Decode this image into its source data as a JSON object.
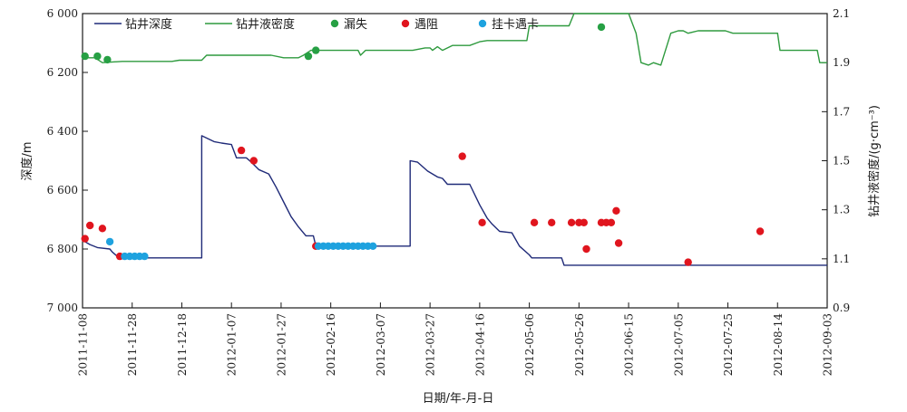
{
  "chart_data": {
    "type": "line",
    "title": "",
    "xlabel": "日期/年-月-日",
    "ylabel_left": "深度/m",
    "ylabel_right": "钻井液密度/(g·cm⁻³)",
    "xlim": [
      "2011-11-08",
      "2012-09-03"
    ],
    "ylim_left": [
      6000,
      7000
    ],
    "ylim_left_inverted": true,
    "ylim_right": [
      0.9,
      2.1
    ],
    "grid": false,
    "legend_placement": "top",
    "x_ticks": [
      "2011-11-08",
      "2011-11-28",
      "2011-12-18",
      "2012-01-07",
      "2012-01-27",
      "2012-02-16",
      "2012-03-07",
      "2012-03-27",
      "2012-04-16",
      "2012-05-06",
      "2012-05-26",
      "2012-06-15",
      "2012-07-05",
      "2012-07-25",
      "2012-08-14",
      "2012-09-03"
    ],
    "y_left_ticks": [
      "6 000",
      "6 200",
      "6 400",
      "6 600",
      "6 800",
      "7 000"
    ],
    "y_right_ticks": [
      "0.9",
      "1.1",
      "1.3",
      "1.5",
      "1.7",
      "1.9",
      "2.1"
    ],
    "colors": {
      "depth": "#1f2a78",
      "density": "#2e9a3e",
      "loss": "#27a044",
      "resistance": "#e0151e",
      "stuck": "#1ea2df",
      "axis": "#1a1a1a"
    },
    "series": [
      {
        "name": "钻井深度",
        "kind": "line",
        "axis": "left",
        "points": [
          [
            "2011-11-08",
            6770
          ],
          [
            "2011-11-11",
            6785
          ],
          [
            "2011-11-14",
            6795
          ],
          [
            "2011-11-19",
            6800
          ],
          [
            "2011-11-20",
            6810
          ],
          [
            "2011-11-22",
            6825
          ],
          [
            "2011-11-28",
            6830
          ],
          [
            "2011-12-26",
            6830
          ],
          [
            "2011-12-26",
            6415
          ],
          [
            "2011-12-31",
            6435
          ],
          [
            "2012-01-03",
            6440
          ],
          [
            "2012-01-07",
            6445
          ],
          [
            "2012-01-09",
            6490
          ],
          [
            "2012-01-13",
            6490
          ],
          [
            "2012-01-15",
            6505
          ],
          [
            "2012-01-18",
            6530
          ],
          [
            "2012-01-22",
            6545
          ],
          [
            "2012-01-25",
            6590
          ],
          [
            "2012-01-28",
            6640
          ],
          [
            "2012-01-31",
            6690
          ],
          [
            "2012-02-03",
            6725
          ],
          [
            "2012-02-06",
            6755
          ],
          [
            "2012-02-09",
            6755
          ],
          [
            "2012-02-10",
            6790
          ],
          [
            "2012-03-19",
            6790
          ],
          [
            "2012-03-19",
            6500
          ],
          [
            "2012-03-22",
            6505
          ],
          [
            "2012-03-26",
            6535
          ],
          [
            "2012-03-30",
            6555
          ],
          [
            "2012-04-01",
            6560
          ],
          [
            "2012-04-03",
            6580
          ],
          [
            "2012-04-12",
            6580
          ],
          [
            "2012-04-16",
            6650
          ],
          [
            "2012-04-19",
            6695
          ],
          [
            "2012-04-21",
            6715
          ],
          [
            "2012-04-24",
            6740
          ],
          [
            "2012-04-29",
            6745
          ],
          [
            "2012-05-02",
            6790
          ],
          [
            "2012-05-06",
            6820
          ],
          [
            "2012-05-07",
            6830
          ],
          [
            "2012-05-19",
            6830
          ],
          [
            "2012-05-20",
            6855
          ],
          [
            "2012-09-03",
            6855
          ]
        ]
      },
      {
        "name": "钻井液密度",
        "kind": "line",
        "axis": "right",
        "points": [
          [
            "2011-11-08",
            1.92
          ],
          [
            "2011-11-13",
            1.92
          ],
          [
            "2011-11-16",
            1.9
          ],
          [
            "2011-11-24",
            1.905
          ],
          [
            "2011-12-14",
            1.905
          ],
          [
            "2011-12-17",
            1.91
          ],
          [
            "2011-12-26",
            1.91
          ],
          [
            "2011-12-28",
            1.93
          ],
          [
            "2012-01-23",
            1.93
          ],
          [
            "2012-01-28",
            1.92
          ],
          [
            "2012-02-03",
            1.92
          ],
          [
            "2012-02-05",
            1.93
          ],
          [
            "2012-02-08",
            1.95
          ],
          [
            "2012-02-17",
            1.95
          ],
          [
            "2012-02-27",
            1.95
          ],
          [
            "2012-02-28",
            1.93
          ],
          [
            "2012-03-01",
            1.95
          ],
          [
            "2012-03-20",
            1.95
          ],
          [
            "2012-03-25",
            1.96
          ],
          [
            "2012-03-27",
            1.96
          ],
          [
            "2012-03-28",
            1.95
          ],
          [
            "2012-03-30",
            1.965
          ],
          [
            "2012-04-01",
            1.95
          ],
          [
            "2012-04-05",
            1.97
          ],
          [
            "2012-04-12",
            1.97
          ],
          [
            "2012-04-16",
            1.985
          ],
          [
            "2012-04-19",
            1.99
          ],
          [
            "2012-05-05",
            1.99
          ],
          [
            "2012-05-06",
            2.05
          ],
          [
            "2012-05-14",
            2.05
          ],
          [
            "2012-05-22",
            2.05
          ],
          [
            "2012-05-24",
            2.1
          ],
          [
            "2012-06-15",
            2.1
          ],
          [
            "2012-06-18",
            2.02
          ],
          [
            "2012-06-20",
            1.9
          ],
          [
            "2012-06-23",
            1.89
          ],
          [
            "2012-06-25",
            1.9
          ],
          [
            "2012-06-28",
            1.89
          ],
          [
            "2012-07-02",
            2.02
          ],
          [
            "2012-07-05",
            2.03
          ],
          [
            "2012-07-07",
            2.03
          ],
          [
            "2012-07-09",
            2.02
          ],
          [
            "2012-07-13",
            2.03
          ],
          [
            "2012-07-24",
            2.03
          ],
          [
            "2012-07-27",
            2.02
          ],
          [
            "2012-08-14",
            2.02
          ],
          [
            "2012-08-15",
            1.95
          ],
          [
            "2012-08-30",
            1.95
          ],
          [
            "2012-08-31",
            1.9
          ],
          [
            "2012-09-03",
            1.9
          ]
        ]
      },
      {
        "name": "漏失",
        "kind": "scatter",
        "axis": "right",
        "points": [
          [
            "2011-11-09",
            1.926
          ],
          [
            "2011-11-14",
            1.926
          ],
          [
            "2011-11-18",
            1.912
          ],
          [
            "2012-02-07",
            1.926
          ],
          [
            "2012-02-10",
            1.95
          ],
          [
            "2012-06-04",
            2.045
          ]
        ]
      },
      {
        "name": "遇阻",
        "kind": "scatter",
        "axis": "left",
        "points": [
          [
            "2011-11-09",
            6765
          ],
          [
            "2011-11-11",
            6720
          ],
          [
            "2011-11-16",
            6730
          ],
          [
            "2011-11-23",
            6825
          ],
          [
            "2012-01-11",
            6465
          ],
          [
            "2012-01-16",
            6500
          ],
          [
            "2012-02-10",
            6790
          ],
          [
            "2012-04-09",
            6485
          ],
          [
            "2012-04-17",
            6710
          ],
          [
            "2012-05-08",
            6710
          ],
          [
            "2012-05-15",
            6710
          ],
          [
            "2012-05-23",
            6710
          ],
          [
            "2012-05-26",
            6710
          ],
          [
            "2012-05-28",
            6710
          ],
          [
            "2012-05-29",
            6800
          ],
          [
            "2012-06-04",
            6710
          ],
          [
            "2012-06-06",
            6710
          ],
          [
            "2012-06-08",
            6710
          ],
          [
            "2012-06-10",
            6670
          ],
          [
            "2012-06-11",
            6780
          ],
          [
            "2012-07-09",
            6845
          ],
          [
            "2012-08-07",
            6740
          ]
        ]
      },
      {
        "name": "挂卡遇卡",
        "kind": "scatter",
        "axis": "left",
        "points": [
          [
            "2011-11-19",
            6775
          ],
          [
            "2011-11-25",
            6825
          ],
          [
            "2011-11-27",
            6825
          ],
          [
            "2011-11-29",
            6825
          ],
          [
            "2011-12-01",
            6825
          ],
          [
            "2011-12-03",
            6825
          ],
          [
            "2012-02-11",
            6790
          ],
          [
            "2012-02-13",
            6790
          ],
          [
            "2012-02-15",
            6790
          ],
          [
            "2012-02-17",
            6790
          ],
          [
            "2012-02-19",
            6790
          ],
          [
            "2012-02-21",
            6790
          ],
          [
            "2012-02-23",
            6790
          ],
          [
            "2012-02-25",
            6790
          ],
          [
            "2012-02-27",
            6790
          ],
          [
            "2012-02-29",
            6790
          ],
          [
            "2012-03-02",
            6790
          ],
          [
            "2012-03-04",
            6790
          ]
        ]
      }
    ]
  }
}
